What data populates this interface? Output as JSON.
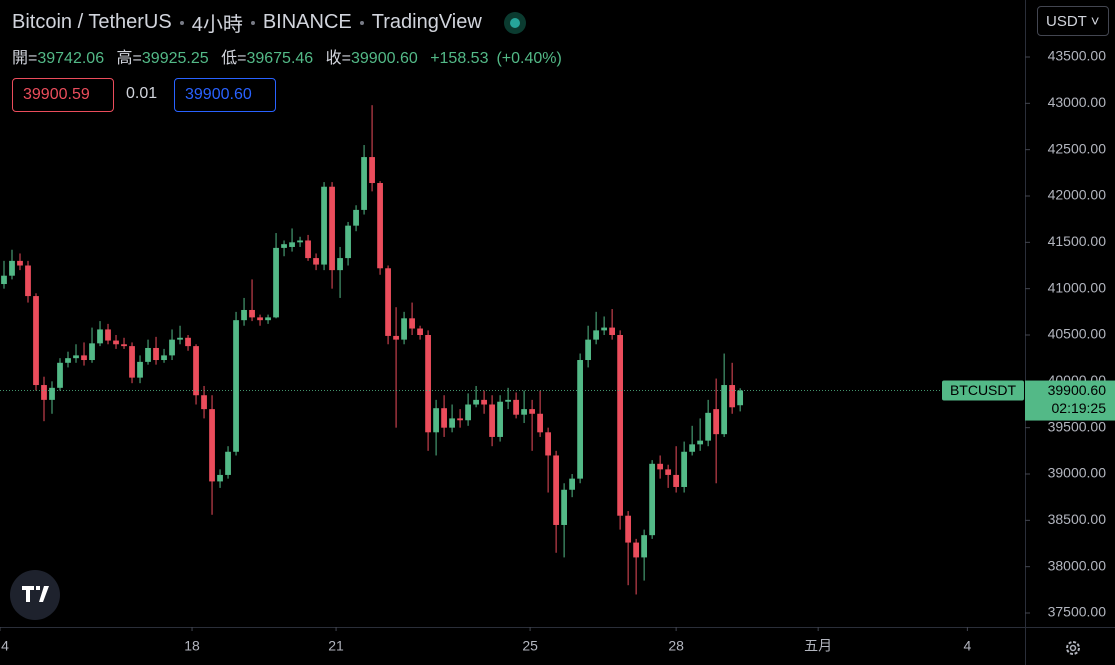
{
  "header": {
    "symbol": "Bitcoin / TetherUS",
    "interval": "4小時",
    "exchange": "BINANCE",
    "source": "TradingView",
    "ohlc": [
      {
        "label": "開=",
        "value": "39742.06"
      },
      {
        "label": "高=",
        "value": "39925.25"
      },
      {
        "label": "低=",
        "value": "39675.46"
      },
      {
        "label": "收=",
        "value": "39900.60"
      }
    ],
    "change": "+158.53",
    "change_percent": "(+0.40%)"
  },
  "order": {
    "sell": "39900.59",
    "spread": "0.01",
    "buy": "39900.60"
  },
  "currency": "USDT",
  "chart_data": {
    "type": "candlestick",
    "up_color": "#53b987",
    "down_color": "#eb4d5c",
    "open": [
      41050,
      41140,
      41300,
      41250,
      40920,
      39960,
      39800,
      39930,
      40200,
      40250,
      40280,
      40230,
      40410,
      40560,
      40440,
      40400,
      40380,
      40040,
      40210,
      40360,
      40230,
      40280,
      40450,
      40470,
      40380,
      39850,
      39700,
      38920,
      38990,
      39240,
      40660,
      40770,
      40690,
      40660,
      40690,
      41440,
      41450,
      41500,
      41520,
      41330,
      41260,
      42100,
      41200,
      41330,
      41680,
      41850,
      42420,
      42140,
      41220,
      40490,
      40450,
      40680,
      40570,
      40500,
      39450,
      39710,
      39500,
      39600,
      39580,
      39750,
      39800,
      39750,
      39400,
      39780,
      39800,
      39640,
      39700,
      39650,
      39450,
      39200,
      38450,
      38830,
      38950,
      40230,
      40450,
      40550,
      40580,
      40500,
      38550,
      38260,
      38100,
      38340,
      39110,
      39050,
      38990,
      38860,
      39240,
      39320,
      39360,
      39700,
      39430,
      39960,
      39742.06
    ],
    "high": [
      41300,
      41420,
      41380,
      41300,
      40950,
      40050,
      40000,
      40250,
      40320,
      40400,
      40420,
      40580,
      40650,
      40620,
      40500,
      40470,
      40420,
      40280,
      40450,
      40480,
      40350,
      40560,
      40600,
      40500,
      40400,
      39950,
      39850,
      39050,
      39300,
      40750,
      40900,
      41100,
      40720,
      40720,
      41600,
      41520,
      41650,
      41560,
      41580,
      41380,
      42150,
      42150,
      41450,
      41720,
      41900,
      42550,
      42980,
      42160,
      41250,
      40800,
      40750,
      40850,
      40600,
      40550,
      39800,
      39850,
      39750,
      39700,
      39870,
      39950,
      39900,
      39850,
      39850,
      39930,
      39880,
      39900,
      39800,
      39900,
      39500,
      39250,
      38900,
      39000,
      40300,
      40600,
      40750,
      40700,
      40780,
      40550,
      38600,
      38300,
      38400,
      39150,
      39200,
      39100,
      39300,
      39350,
      39520,
      39600,
      39800,
      40030,
      40300,
      40200,
      39925.25
    ],
    "low": [
      41000,
      41100,
      41200,
      40850,
      39900,
      39570,
      39650,
      39900,
      40150,
      40200,
      40170,
      40200,
      40380,
      40400,
      40350,
      40350,
      39980,
      39980,
      40180,
      40180,
      40200,
      40230,
      40400,
      40330,
      39750,
      39600,
      38560,
      38850,
      38950,
      39200,
      40600,
      40650,
      40600,
      40620,
      40680,
      41350,
      41400,
      41450,
      41300,
      41200,
      41200,
      41000,
      40900,
      41250,
      41620,
      41800,
      42050,
      41150,
      40400,
      39500,
      40400,
      40500,
      40450,
      39250,
      39200,
      39400,
      39450,
      39500,
      39520,
      39720,
      39650,
      39300,
      39350,
      39700,
      39600,
      39550,
      39250,
      39400,
      38800,
      38150,
      38100,
      38750,
      38900,
      40150,
      40400,
      40500,
      40450,
      38400,
      37800,
      37700,
      37850,
      38300,
      38950,
      38850,
      38800,
      38800,
      39200,
      39250,
      39300,
      38900,
      39400,
      39650,
      39675.46
    ],
    "close": [
      41140,
      41300,
      41250,
      40920,
      39960,
      39800,
      39930,
      40200,
      40250,
      40280,
      40230,
      40410,
      40560,
      40440,
      40400,
      40380,
      40040,
      40210,
      40360,
      40230,
      40280,
      40450,
      40470,
      40380,
      39850,
      39700,
      38920,
      38990,
      39240,
      40660,
      40770,
      40690,
      40660,
      40690,
      41440,
      41480,
      41500,
      41520,
      41330,
      41260,
      42100,
      41200,
      41330,
      41680,
      41850,
      42420,
      42140,
      41220,
      40490,
      40450,
      40680,
      40570,
      40500,
      39450,
      39710,
      39500,
      39600,
      39580,
      39750,
      39800,
      39750,
      39400,
      39780,
      39800,
      39640,
      39700,
      39650,
      39450,
      39200,
      38450,
      38830,
      38950,
      40230,
      40450,
      40550,
      40580,
      40500,
      38550,
      38260,
      38100,
      38340,
      39110,
      39050,
      38990,
      38860,
      39240,
      39320,
      39360,
      39660,
      39430,
      39960,
      39720,
      39900.6
    ],
    "xlim": [
      -0.5,
      127.6
    ],
    "xticks": [
      {
        "value": -0.5,
        "label": "4"
      },
      {
        "value": 23.5,
        "label": "18"
      },
      {
        "value": 41.5,
        "label": "21"
      },
      {
        "value": 65.75,
        "label": "25"
      },
      {
        "value": 84,
        "label": "28"
      },
      {
        "value": 101.75,
        "label": "五月"
      },
      {
        "value": 120.4,
        "label": "4"
      }
    ],
    "ylim": [
      37349,
      44115
    ],
    "yticks": [
      {
        "value": 37500,
        "label": "37500.00"
      },
      {
        "value": 38000,
        "label": "38000.00"
      },
      {
        "value": 38500,
        "label": "38500.00"
      },
      {
        "value": 39000,
        "label": "39000.00"
      },
      {
        "value": 39500,
        "label": "39500.00"
      },
      {
        "value": 40000,
        "label": "40000.00"
      },
      {
        "value": 40500,
        "label": "40500.00"
      },
      {
        "value": 41000,
        "label": "41000.00"
      },
      {
        "value": 41500,
        "label": "41500.00"
      },
      {
        "value": 42000,
        "label": "42000.00"
      },
      {
        "value": 42500,
        "label": "42500.00"
      },
      {
        "value": 43000,
        "label": "43000.00"
      },
      {
        "value": 43500,
        "label": "43500.00"
      }
    ],
    "price_label": {
      "symbol": "BTCUSDT",
      "price": "39900.60",
      "countdown": "02:19:25"
    }
  }
}
